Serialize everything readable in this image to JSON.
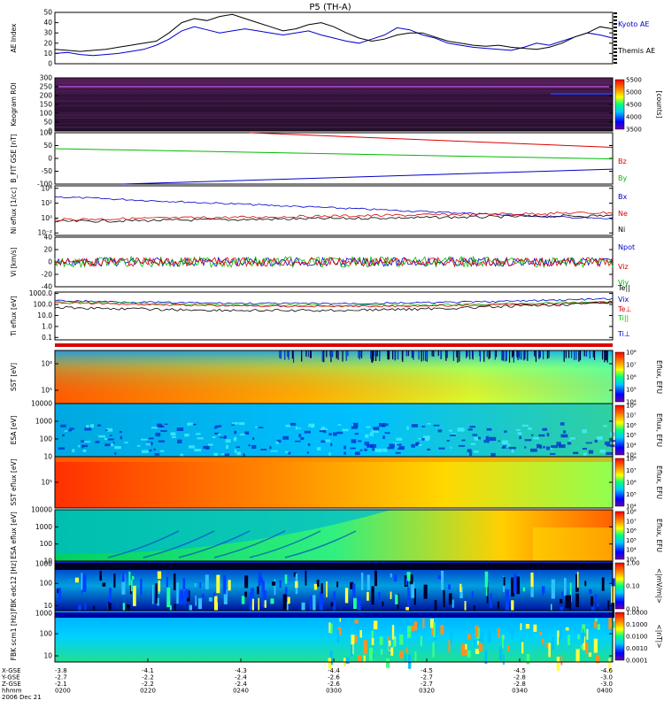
{
  "title": "P5 (TH-A)",
  "chart_data": [
    {
      "type": "line",
      "ylabel": "AE Index",
      "ylim": [
        0,
        50
      ],
      "yticks": [
        "0",
        "10",
        "20",
        "30",
        "40",
        "50"
      ],
      "series": [
        {
          "name": "Kyoto AE",
          "color": "#0000cc",
          "values": [
            10,
            11,
            9,
            8,
            9,
            10,
            12,
            14,
            18,
            24,
            32,
            36,
            33,
            30,
            32,
            34,
            32,
            30,
            28,
            30,
            32,
            28,
            25,
            22,
            20,
            24,
            28,
            35,
            33,
            28,
            25,
            20,
            18,
            16,
            15,
            14,
            13,
            16,
            20,
            18,
            22,
            26,
            30,
            28,
            25
          ]
        },
        {
          "name": "Themis AE",
          "color": "#000000",
          "values": [
            14,
            13,
            12,
            13,
            14,
            16,
            18,
            20,
            22,
            30,
            40,
            44,
            42,
            46,
            48,
            44,
            40,
            36,
            32,
            34,
            38,
            40,
            36,
            30,
            25,
            22,
            24,
            28,
            30,
            30,
            26,
            22,
            20,
            18,
            17,
            18,
            16,
            15,
            14,
            16,
            20,
            26,
            30,
            36,
            34
          ]
        }
      ]
    },
    {
      "type": "heatmap",
      "ylabel": "Keogram ROI",
      "yticks": [
        "0",
        "50",
        "100",
        "150",
        "200",
        "250",
        "300"
      ],
      "colorbar_ticks": [
        "3500",
        "4000",
        "4500",
        "5000",
        "5500"
      ],
      "colorbar_label": "[counts]"
    },
    {
      "type": "line",
      "ylabel": "B_FIT GSE [nT]",
      "ylim": [
        -100,
        100
      ],
      "yticks": [
        "-100",
        "-50",
        "0",
        "50",
        "100"
      ],
      "series": [
        {
          "name": "Bz",
          "color": "#dd0000",
          "x": [
            0.35,
            1.0
          ],
          "values": [
            100,
            43
          ]
        },
        {
          "name": "By",
          "color": "#00bb00",
          "x": [
            0.0,
            1.0
          ],
          "values": [
            38,
            -2
          ]
        },
        {
          "name": "Bx",
          "color": "#0000cc",
          "x": [
            0.12,
            1.0
          ],
          "values": [
            -100,
            -42
          ]
        }
      ]
    },
    {
      "type": "line",
      "ylabel": "Ni eflux [1/cc]",
      "yticks": [
        "10⁻²",
        "10⁰",
        "10²",
        "10⁴"
      ],
      "series": [
        {
          "name": "Ne",
          "color": "#dd0000"
        },
        {
          "name": "Ni",
          "color": "#000000"
        },
        {
          "name": "Npot",
          "color": "#0000cc"
        }
      ]
    },
    {
      "type": "line",
      "ylabel": "Vi [km/s]",
      "ylim": [
        -40,
        40
      ],
      "yticks": [
        "-40",
        "-20",
        "0",
        "20",
        "40"
      ],
      "series": [
        {
          "name": "Viz",
          "color": "#dd0000"
        },
        {
          "name": "Viy",
          "color": "#00bb00"
        },
        {
          "name": "Vix",
          "color": "#0000cc"
        }
      ]
    },
    {
      "type": "line",
      "ylabel": "Ti eflux [eV]",
      "yticks": [
        "0.1",
        "1.0",
        "10.0",
        "100.0",
        "1000.0"
      ],
      "series": [
        {
          "name": "Te||",
          "color": "#000000"
        },
        {
          "name": "Te⊥",
          "color": "#dd0000"
        },
        {
          "name": "Ti||",
          "color": "#00bb00"
        },
        {
          "name": "Ti⊥",
          "color": "#0000cc"
        }
      ]
    },
    {
      "type": "heatmap",
      "ylabel": "SST [eV]",
      "yticks": [
        "10⁵",
        "10⁶"
      ],
      "colorbar_label": "Eflux, EFU",
      "colorbar_ticks": [
        "10⁴",
        "10⁵",
        "10⁶",
        "10⁷",
        "10⁸"
      ]
    },
    {
      "type": "heatmap",
      "ylabel": "ESA [eV]",
      "yticks": [
        "10",
        "100",
        "1000",
        "10000"
      ],
      "colorbar_label": "Eflux, EFU",
      "colorbar_ticks": [
        "10³",
        "10⁴",
        "10⁵",
        "10⁶",
        "10⁷",
        "10⁸"
      ]
    },
    {
      "type": "heatmap",
      "ylabel": "SST eflux [eV]",
      "yticks": [
        "10⁵"
      ],
      "colorbar_label": "Eflux, EFU",
      "colorbar_ticks": [
        "10⁴",
        "10⁵",
        "10⁶",
        "10⁷",
        "10⁸"
      ]
    },
    {
      "type": "heatmap",
      "ylabel": "ESA eflux [eV]",
      "yticks": [
        "10",
        "100",
        "1000",
        "10000"
      ],
      "colorbar_label": "Eflux, EFU",
      "colorbar_ticks": [
        "10³",
        "10⁴",
        "10⁵",
        "10⁶",
        "10⁷",
        "10⁸"
      ]
    },
    {
      "type": "heatmap",
      "ylabel": "FBK edc12 [Hz]",
      "yticks": [
        "10",
        "100",
        "1000"
      ],
      "colorbar_label": "<|mV/m|>",
      "colorbar_ticks": [
        "0.01",
        "0.10",
        "1.00"
      ]
    },
    {
      "type": "heatmap",
      "ylabel": "FBK scm1 [Hz]",
      "yticks": [
        "10",
        "100",
        "1000"
      ],
      "colorbar_label": "<|nT|>",
      "colorbar_ticks": [
        "0.0001",
        "0.0010",
        "0.0100",
        "0.1000",
        "1.0000"
      ]
    }
  ],
  "xaxis": {
    "row_labels": [
      "X-GSE",
      "Y-GSE",
      "Z-GSE",
      "hhmm",
      "2006 Dec 21"
    ],
    "rows": [
      [
        "-3.8",
        "-4.1",
        "-4.3",
        "-4.4",
        "-4.5",
        "-4.5",
        "-4.6"
      ],
      [
        "-2.7",
        "-2.2",
        "-2.4",
        "-2.6",
        "-2.7",
        "-2.8",
        "-3.0"
      ],
      [
        "-2.1",
        "-2.2",
        "-2.4",
        "-2.6",
        "-2.7",
        "-2.8",
        "-3.0"
      ],
      [
        "0200",
        "0220",
        "0240",
        "0300",
        "0320",
        "0340",
        "0400"
      ]
    ]
  },
  "colors": {
    "axis": "#000000",
    "red": "#dd0000",
    "green": "#00bb00",
    "blue": "#0000cc",
    "keogram": "#3a1640"
  }
}
